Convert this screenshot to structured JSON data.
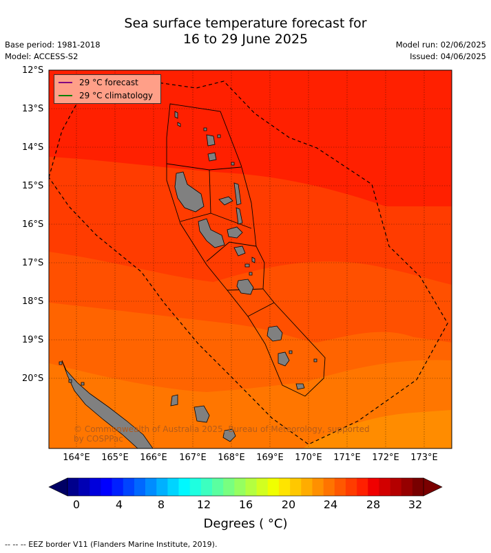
{
  "title": {
    "line1": "Sea surface temperature forecast for",
    "line2": "16 to 29 June 2025"
  },
  "meta_left": {
    "base_period": "Base period: 1981-2018",
    "model": "Model: ACCESS-S2"
  },
  "meta_right": {
    "model_run": "Model run: 02/06/2025",
    "issued": "Issued: 04/06/2025"
  },
  "legend": {
    "forecast": "29 °C  forecast",
    "forecast_color": "#800080",
    "climatology": "29 °C  climatology",
    "climatology_color": "#008000"
  },
  "lat_labels": [
    "12°S",
    "13°S",
    "14°S",
    "15°S",
    "16°S",
    "17°S",
    "18°S",
    "19°S",
    "20°S"
  ],
  "lon_labels": [
    "164°E",
    "165°E",
    "166°E",
    "167°E",
    "168°E",
    "169°E",
    "170°E",
    "171°E",
    "172°E",
    "173°E"
  ],
  "colorbar": {
    "ticks": [
      "0",
      "4",
      "8",
      "12",
      "16",
      "20",
      "24",
      "28",
      "32"
    ],
    "label": "Degrees ( °C)",
    "colors": [
      "#00008c",
      "#0000b4",
      "#0000dc",
      "#0000ff",
      "#0020ff",
      "#0044ff",
      "#0068ff",
      "#008cff",
      "#00b0ff",
      "#00d4ff",
      "#00f8ff",
      "#1effe0",
      "#3cffc0",
      "#5affa0",
      "#78ff80",
      "#96ff60",
      "#b4ff40",
      "#d2ff20",
      "#f0ff00",
      "#ffe400",
      "#ffc800",
      "#ffac00",
      "#ff9000",
      "#ff7400",
      "#ff5800",
      "#ff3c00",
      "#ff2000",
      "#f00000",
      "#d20000",
      "#b40000",
      "#960000",
      "#780000"
    ],
    "low_extend": "#000064",
    "high_extend": "#7a0000"
  },
  "copyright": "© Commonwealth of Australia 2025, Bureau of Meteorology, supported by COSPPac",
  "footer": "--  --  -- EEZ border V11 (Flanders Marine Institute, 2019).",
  "map": {
    "colors": {
      "band_29": "#ff2000",
      "band_28": "#ff3c00",
      "band_27": "#ff5000",
      "band_26": "#ff6400",
      "band_25": "#ff7600",
      "band_24": "#ff8c00",
      "land": "#808080"
    }
  }
}
